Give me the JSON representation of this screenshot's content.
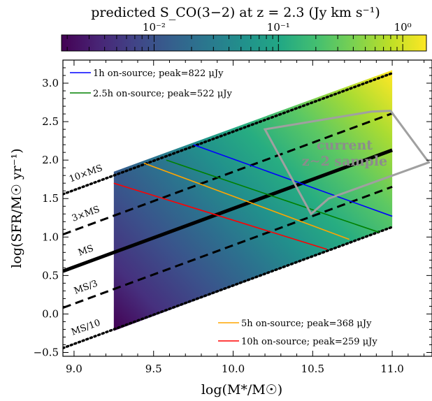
{
  "chart_data": {
    "type": "line",
    "title": "predicted S_CO(3−2) at z = 2.3 (Jy km s⁻¹)",
    "xlabel": "log(M*/M☉)",
    "ylabel": "log(SFR/M☉ yr⁻¹)",
    "xlim": [
      8.93,
      11.25
    ],
    "ylim": [
      -0.55,
      3.3
    ],
    "xticks": [
      "9.0",
      "9.5",
      "10.0",
      "10.5",
      "11.0"
    ],
    "yticks": [
      "−0.5",
      "0.0",
      "0.5",
      "1.0",
      "1.5",
      "2.0",
      "2.5",
      "3.0"
    ],
    "colorbar": {
      "scale": "log",
      "range": [
        0.0018,
        1.55
      ],
      "tick_labels": [
        "10⁻²",
        "10⁻¹",
        "10⁰"
      ],
      "tick_values": [
        0.01,
        0.1,
        1.0
      ],
      "colormap": "viridis"
    },
    "shaded_region": {
      "x": [
        9.25,
        11.0
      ],
      "y_low_at_x": [
        -0.22,
        1.13
      ],
      "y_high_at_x": [
        1.85,
        3.17
      ]
    },
    "main_sequence": {
      "slope": 0.76,
      "intercept_at_9": 0.61
    },
    "ms_lines": [
      {
        "label": "10×MS",
        "offset_dex": 1.0,
        "style": "dotted"
      },
      {
        "label": "3×MS",
        "offset_dex": 0.477,
        "style": "dashed"
      },
      {
        "label": "MS",
        "offset_dex": 0.0,
        "style": "solid"
      },
      {
        "label": "MS/3",
        "offset_dex": -0.477,
        "style": "dashed"
      },
      {
        "label": "MS/10",
        "offset_dex": -1.0,
        "style": "dotted"
      }
    ],
    "series": [
      {
        "name": "1h on-source; peak=822 μJy",
        "color": "#0000ff",
        "x": [
          9.75,
          11.0
        ],
        "y": [
          2.2,
          1.27
        ]
      },
      {
        "name": "2.5h on-source; peak=522 μJy",
        "color": "#008000",
        "x": [
          9.58,
          10.92
        ],
        "y": [
          2.0,
          1.06
        ]
      },
      {
        "name": "5h on-source; peak=368 μJy",
        "color": "#ffa500",
        "x": [
          9.44,
          10.73
        ],
        "y": [
          1.96,
          0.97
        ]
      },
      {
        "name": "10h on-source; peak=259 μJy",
        "color": "#ff0000",
        "x": [
          9.25,
          10.59
        ],
        "y": [
          1.7,
          0.84
        ]
      }
    ],
    "annotation": {
      "text_line1": "current",
      "text_line2": "z∼2 sample",
      "polygon_color": "#a0a0a0",
      "polygon": [
        [
          10.2,
          2.4
        ],
        [
          10.87,
          2.63
        ],
        [
          10.99,
          2.64
        ],
        [
          11.23,
          1.97
        ],
        [
          10.6,
          1.5
        ],
        [
          10.49,
          1.3
        ]
      ]
    },
    "legend_placement": [
      "top-left",
      "bottom-right"
    ],
    "grid": false
  }
}
